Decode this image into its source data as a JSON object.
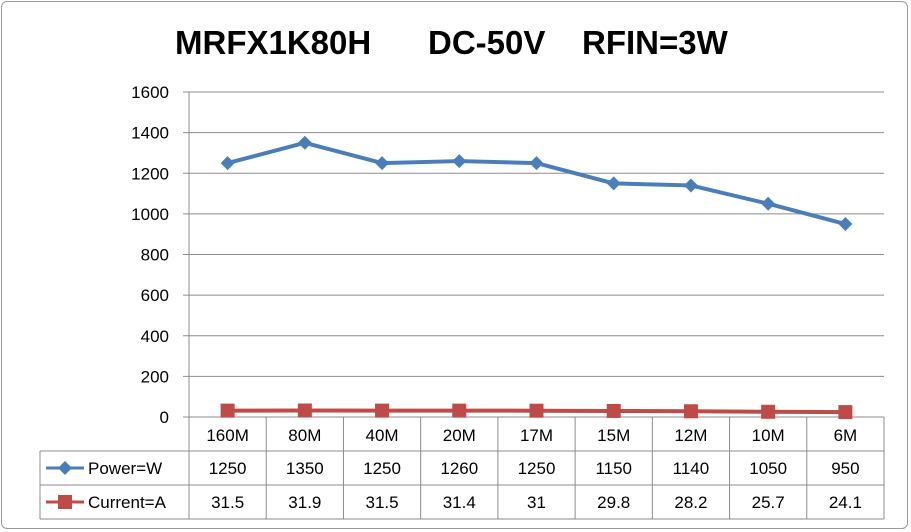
{
  "chart_data": {
    "type": "line",
    "title_parts": [
      "MRFX1K80H",
      "DC-50V",
      "RFIN=3W"
    ],
    "categories": [
      "160M",
      "80M",
      "40M",
      "20M",
      "17M",
      "15M",
      "12M",
      "10M",
      "6M"
    ],
    "series": [
      {
        "name": "Power=W",
        "color": "#4a7ebb",
        "marker": "diamond",
        "values": [
          1250,
          1350,
          1250,
          1260,
          1250,
          1150,
          1140,
          1050,
          950
        ]
      },
      {
        "name": "Current=A",
        "color": "#be4b48",
        "marker": "square",
        "values": [
          31.5,
          31.9,
          31.5,
          31.4,
          31,
          29.8,
          28.2,
          25.7,
          24.1
        ]
      }
    ],
    "ylim": [
      0,
      1600
    ],
    "yticks": [
      0,
      200,
      400,
      600,
      800,
      1000,
      1200,
      1400,
      1600
    ],
    "grid": true,
    "legend": "data-table"
  }
}
